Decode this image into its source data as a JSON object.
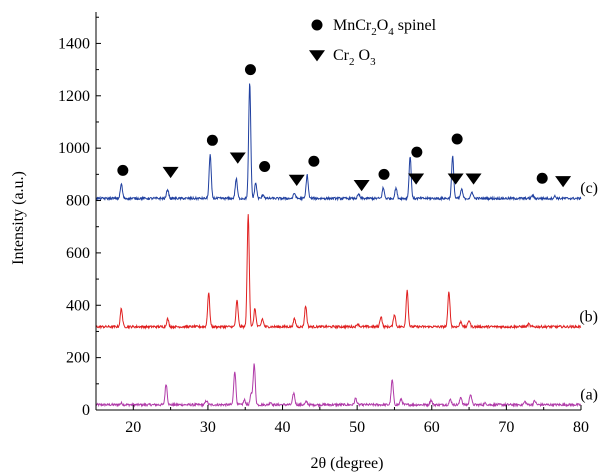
{
  "chart_data": {
    "type": "line",
    "xlabel": "2θ (degree)",
    "ylabel": "Intensity (a.u.)",
    "xlim": [
      15,
      80
    ],
    "ylim": [
      0,
      1520
    ],
    "xticks": [
      20,
      30,
      40,
      50,
      60,
      70,
      80
    ],
    "yticks": [
      0,
      200,
      400,
      600,
      800,
      1000,
      1200,
      1400
    ],
    "legend": [
      {
        "marker": "circle",
        "label_main": "MnCr",
        "sub1": "2",
        "mid": "O",
        "sub2": "4",
        "suffix": " spinel"
      },
      {
        "marker": "triangle-down",
        "label_main": "Cr",
        "sub1": "2",
        "mid": " O",
        "sub2": "3",
        "suffix": ""
      }
    ],
    "series": [
      {
        "label": "(a)",
        "color": "#b03aa8",
        "baseline": 20,
        "peaks": [
          [
            18.4,
            6
          ],
          [
            24.4,
            80
          ],
          [
            29.8,
            16
          ],
          [
            33.6,
            130
          ],
          [
            34.9,
            18
          ],
          [
            35.8,
            40
          ],
          [
            36.2,
            155
          ],
          [
            38.4,
            10
          ],
          [
            41.5,
            45
          ],
          [
            43.2,
            12
          ],
          [
            49.8,
            25
          ],
          [
            54.7,
            95
          ],
          [
            55.9,
            22
          ],
          [
            59.9,
            18
          ],
          [
            62.5,
            20
          ],
          [
            63.9,
            30
          ],
          [
            65.2,
            42
          ],
          [
            67.2,
            6
          ],
          [
            72.5,
            12
          ],
          [
            73.8,
            15
          ]
        ]
      },
      {
        "label": "(b)",
        "color": "#e02020",
        "baseline": 318,
        "peaks": [
          [
            18.4,
            70
          ],
          [
            24.6,
            30
          ],
          [
            30.1,
            130
          ],
          [
            33.9,
            100
          ],
          [
            35.4,
            430
          ],
          [
            36.3,
            70
          ],
          [
            37.3,
            30
          ],
          [
            41.6,
            30
          ],
          [
            43.1,
            80
          ],
          [
            50.1,
            12
          ],
          [
            53.2,
            40
          ],
          [
            55.0,
            48
          ],
          [
            56.7,
            140
          ],
          [
            62.3,
            135
          ],
          [
            63.9,
            20
          ],
          [
            65.0,
            25
          ],
          [
            73.0,
            10
          ]
        ]
      },
      {
        "label": "(c)",
        "color": "#2040a0",
        "baseline": 808,
        "peaks": [
          [
            18.4,
            55
          ],
          [
            24.6,
            35
          ],
          [
            30.3,
            165
          ],
          [
            33.8,
            75
          ],
          [
            35.6,
            440
          ],
          [
            36.4,
            60
          ],
          [
            37.4,
            15
          ],
          [
            41.6,
            20
          ],
          [
            43.3,
            90
          ],
          [
            50.2,
            15
          ],
          [
            53.5,
            40
          ],
          [
            55.2,
            40
          ],
          [
            57.1,
            160
          ],
          [
            62.8,
            160
          ],
          [
            64.0,
            35
          ],
          [
            65.4,
            25
          ],
          [
            73.5,
            12
          ],
          [
            76.5,
            8
          ]
        ]
      }
    ],
    "markers": [
      {
        "type": "circle",
        "x": 18.6,
        "y": 915
      },
      {
        "type": "triangle",
        "x": 25.0,
        "y": 910
      },
      {
        "type": "circle",
        "x": 30.6,
        "y": 1030
      },
      {
        "type": "triangle",
        "x": 34.0,
        "y": 965
      },
      {
        "type": "circle",
        "x": 35.7,
        "y": 1300
      },
      {
        "type": "circle",
        "x": 37.6,
        "y": 930
      },
      {
        "type": "triangle",
        "x": 41.9,
        "y": 880
      },
      {
        "type": "circle",
        "x": 44.2,
        "y": 950
      },
      {
        "type": "triangle",
        "x": 50.6,
        "y": 860
      },
      {
        "type": "circle",
        "x": 53.6,
        "y": 900
      },
      {
        "type": "triangle",
        "x": 57.9,
        "y": 885
      },
      {
        "type": "circle",
        "x": 58.0,
        "y": 985
      },
      {
        "type": "circle",
        "x": 63.4,
        "y": 1035
      },
      {
        "type": "triangle",
        "x": 63.2,
        "y": 885
      },
      {
        "type": "triangle",
        "x": 65.6,
        "y": 885
      },
      {
        "type": "circle",
        "x": 74.8,
        "y": 885
      },
      {
        "type": "triangle",
        "x": 77.6,
        "y": 875
      }
    ]
  }
}
